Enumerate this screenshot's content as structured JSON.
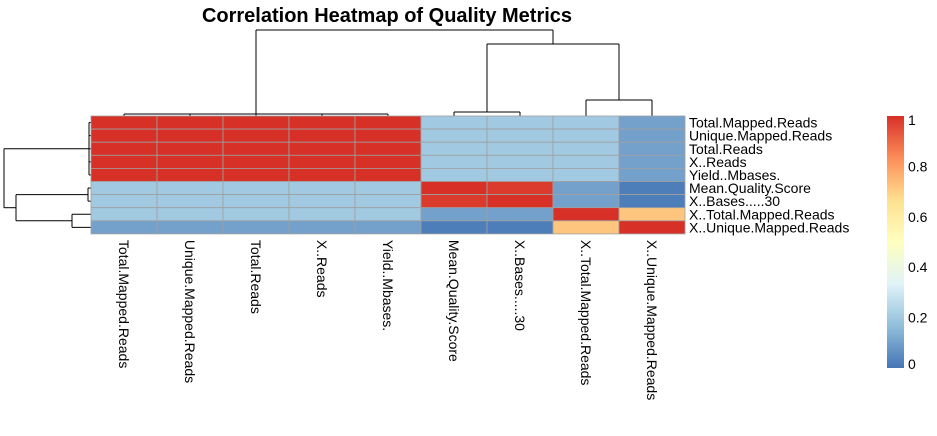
{
  "chart_data": {
    "type": "heatmap",
    "title": "Correlation Heatmap of Quality Metrics",
    "row_labels": [
      "Total.Mapped.Reads",
      "Unique.Mapped.Reads",
      "Total.Reads",
      "X..Reads",
      "Yield..Mbases.",
      "Mean.Quality.Score",
      "X..Bases.....30",
      "X..Total.Mapped.Reads",
      "X..Unique.Mapped.Reads"
    ],
    "col_labels": [
      "Total.Mapped.Reads",
      "Unique.Mapped.Reads",
      "Total.Reads",
      "X..Reads",
      "Yield..Mbases.",
      "Mean.Quality.Score",
      "X..Bases.....30",
      "X..Total.Mapped.Reads",
      "X..Unique.Mapped.Reads"
    ],
    "values": [
      [
        1.0,
        1.0,
        1.0,
        1.0,
        1.0,
        0.2,
        0.2,
        0.2,
        0.1
      ],
      [
        1.0,
        1.0,
        1.0,
        1.0,
        1.0,
        0.2,
        0.2,
        0.2,
        0.1
      ],
      [
        1.0,
        1.0,
        1.0,
        1.0,
        1.0,
        0.2,
        0.2,
        0.2,
        0.1
      ],
      [
        1.0,
        1.0,
        1.0,
        1.0,
        1.0,
        0.2,
        0.2,
        0.2,
        0.1
      ],
      [
        1.0,
        1.0,
        1.0,
        1.0,
        1.0,
        0.2,
        0.2,
        0.2,
        0.1
      ],
      [
        0.2,
        0.2,
        0.2,
        0.2,
        0.2,
        1.0,
        0.98,
        0.1,
        0.02
      ],
      [
        0.2,
        0.2,
        0.2,
        0.2,
        0.2,
        0.98,
        1.0,
        0.1,
        0.02
      ],
      [
        0.2,
        0.2,
        0.2,
        0.2,
        0.2,
        0.1,
        0.1,
        1.0,
        0.72
      ],
      [
        0.1,
        0.1,
        0.1,
        0.1,
        0.1,
        0.02,
        0.02,
        0.72,
        1.0
      ]
    ],
    "colorbar": {
      "ticks": [
        {
          "value": 1.0,
          "label": "1"
        },
        {
          "value": 0.8,
          "label": "0.8"
        },
        {
          "value": 0.6,
          "label": "0.6"
        },
        {
          "value": 0.4,
          "label": "0.4"
        },
        {
          "value": 0.2,
          "label": "0.2"
        },
        {
          "value": 0.0,
          "label": "0"
        }
      ],
      "range": [
        0,
        1
      ],
      "colors": [
        "#4575b4",
        "#91bfdb",
        "#e0f3f8",
        "#ffffbf",
        "#fee090",
        "#fc8d59",
        "#d73027"
      ]
    }
  }
}
